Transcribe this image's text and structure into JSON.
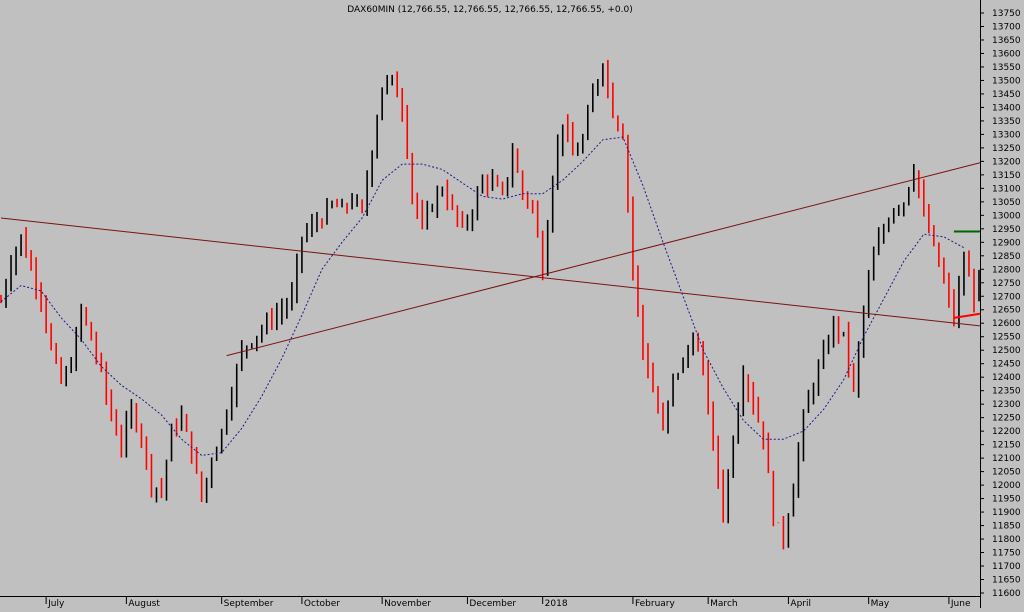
{
  "chart_data": {
    "type": "line",
    "subtype": "price-bars",
    "title": "DAX60MIN (12,766.55, 12,766.55, 12,766.55, 12,766.55, +0.0)",
    "xlabel": "",
    "ylabel": "",
    "ylim": [
      11575,
      13775
    ],
    "grid": false,
    "legend": "none",
    "y_ticks": [
      11600,
      11650,
      11700,
      11750,
      11800,
      11850,
      11900,
      11950,
      12000,
      12050,
      12100,
      12150,
      12200,
      12250,
      12300,
      12350,
      12400,
      12450,
      12500,
      12550,
      12600,
      12650,
      12700,
      12750,
      12800,
      12850,
      12900,
      12950,
      13000,
      13050,
      13100,
      13150,
      13200,
      13250,
      13300,
      13350,
      13400,
      13450,
      13500,
      13550,
      13600,
      13650,
      13700,
      13750
    ],
    "x_labels": [
      "July",
      "August",
      "September",
      "October",
      "November",
      "December",
      "2018",
      "February",
      "March",
      "April",
      "May",
      "June"
    ],
    "x_label_bar_index": [
      9,
      25,
      44,
      60,
      76,
      93,
      108,
      126,
      141,
      157,
      173,
      189
    ],
    "bar_count": 196,
    "close_path": [
      [
        0,
        12680
      ],
      [
        2,
        12830
      ],
      [
        4,
        12920
      ],
      [
        6,
        12800
      ],
      [
        8,
        12700
      ],
      [
        10,
        12500
      ],
      [
        12,
        12380
      ],
      [
        14,
        12450
      ],
      [
        16,
        12650
      ],
      [
        18,
        12540
      ],
      [
        20,
        12420
      ],
      [
        22,
        12250
      ],
      [
        24,
        12150
      ],
      [
        26,
        12280
      ],
      [
        28,
        12180
      ],
      [
        30,
        12000
      ],
      [
        32,
        11980
      ],
      [
        34,
        12200
      ],
      [
        36,
        12250
      ],
      [
        38,
        12120
      ],
      [
        40,
        11950
      ],
      [
        42,
        12100
      ],
      [
        44,
        12200
      ],
      [
        46,
        12350
      ],
      [
        48,
        12500
      ],
      [
        50,
        12540
      ],
      [
        52,
        12580
      ],
      [
        54,
        12620
      ],
      [
        56,
        12650
      ],
      [
        58,
        12700
      ],
      [
        60,
        12920
      ],
      [
        62,
        12960
      ],
      [
        64,
        12990
      ],
      [
        66,
        13040
      ],
      [
        68,
        13020
      ],
      [
        70,
        13060
      ],
      [
        72,
        13010
      ],
      [
        74,
        13250
      ],
      [
        76,
        13480
      ],
      [
        78,
        13500
      ],
      [
        80,
        13400
      ],
      [
        82,
        13080
      ],
      [
        84,
        12950
      ],
      [
        86,
        13050
      ],
      [
        88,
        13100
      ],
      [
        90,
        13020
      ],
      [
        92,
        12950
      ],
      [
        94,
        13020
      ],
      [
        96,
        13130
      ],
      [
        98,
        13120
      ],
      [
        100,
        13070
      ],
      [
        102,
        13230
      ],
      [
        104,
        13080
      ],
      [
        106,
        13030
      ],
      [
        108,
        12800
      ],
      [
        110,
        13150
      ],
      [
        112,
        13350
      ],
      [
        114,
        13220
      ],
      [
        116,
        13280
      ],
      [
        118,
        13450
      ],
      [
        120,
        13570
      ],
      [
        122,
        13380
      ],
      [
        124,
        13300
      ],
      [
        126,
        12800
      ],
      [
        128,
        12500
      ],
      [
        130,
        12350
      ],
      [
        132,
        12200
      ],
      [
        134,
        12400
      ],
      [
        136,
        12450
      ],
      [
        138,
        12550
      ],
      [
        140,
        12430
      ],
      [
        142,
        12150
      ],
      [
        144,
        11900
      ],
      [
        146,
        12180
      ],
      [
        148,
        12420
      ],
      [
        150,
        12300
      ],
      [
        152,
        12180
      ],
      [
        154,
        11880
      ],
      [
        156,
        11800
      ],
      [
        158,
        12000
      ],
      [
        160,
        12250
      ],
      [
        162,
        12380
      ],
      [
        164,
        12480
      ],
      [
        166,
        12600
      ],
      [
        168,
        12550
      ],
      [
        170,
        12350
      ],
      [
        172,
        12650
      ],
      [
        174,
        12850
      ],
      [
        176,
        12950
      ],
      [
        178,
        13030
      ],
      [
        180,
        13050
      ],
      [
        182,
        13180
      ],
      [
        184,
        13000
      ],
      [
        186,
        12880
      ],
      [
        188,
        12750
      ],
      [
        190,
        12620
      ],
      [
        192,
        12830
      ],
      [
        194,
        12700
      ],
      [
        195,
        12766.55
      ]
    ],
    "moving_average": [
      [
        0,
        12680
      ],
      [
        4,
        12740
      ],
      [
        8,
        12720
      ],
      [
        12,
        12620
      ],
      [
        16,
        12540
      ],
      [
        20,
        12440
      ],
      [
        24,
        12370
      ],
      [
        28,
        12320
      ],
      [
        32,
        12260
      ],
      [
        36,
        12170
      ],
      [
        40,
        12110
      ],
      [
        44,
        12120
      ],
      [
        48,
        12210
      ],
      [
        52,
        12330
      ],
      [
        56,
        12470
      ],
      [
        60,
        12630
      ],
      [
        64,
        12800
      ],
      [
        68,
        12900
      ],
      [
        72,
        12990
      ],
      [
        76,
        13130
      ],
      [
        80,
        13190
      ],
      [
        84,
        13190
      ],
      [
        88,
        13170
      ],
      [
        92,
        13120
      ],
      [
        96,
        13070
      ],
      [
        100,
        13060
      ],
      [
        104,
        13080
      ],
      [
        108,
        13080
      ],
      [
        112,
        13130
      ],
      [
        116,
        13200
      ],
      [
        120,
        13280
      ],
      [
        124,
        13290
      ],
      [
        128,
        13110
      ],
      [
        132,
        12900
      ],
      [
        136,
        12700
      ],
      [
        140,
        12500
      ],
      [
        144,
        12360
      ],
      [
        148,
        12240
      ],
      [
        152,
        12170
      ],
      [
        156,
        12170
      ],
      [
        160,
        12200
      ],
      [
        164,
        12280
      ],
      [
        168,
        12390
      ],
      [
        172,
        12550
      ],
      [
        176,
        12690
      ],
      [
        180,
        12830
      ],
      [
        184,
        12930
      ],
      [
        188,
        12920
      ],
      [
        192,
        12880
      ]
    ],
    "trendlines": [
      {
        "from": [
          0,
          12990
        ],
        "to": [
          196,
          12590
        ],
        "color": "#7a1212"
      },
      {
        "from": [
          45,
          12480
        ],
        "to": [
          196,
          13195
        ],
        "color": "#7a1212"
      }
    ],
    "horizontal_marks": [
      {
        "from": [
          190,
          12940
        ],
        "to": [
          196,
          12940
        ],
        "color": "#006400"
      },
      {
        "from": [
          190,
          12620
        ],
        "to": [
          196,
          12635
        ],
        "color": "#ff0000"
      }
    ],
    "colors": {
      "background": "#c0c0c0",
      "bar_up": "#000000",
      "bar_down": "#ff0000",
      "moving_average": "#1a1a8c",
      "trendline": "#7a1212"
    }
  }
}
